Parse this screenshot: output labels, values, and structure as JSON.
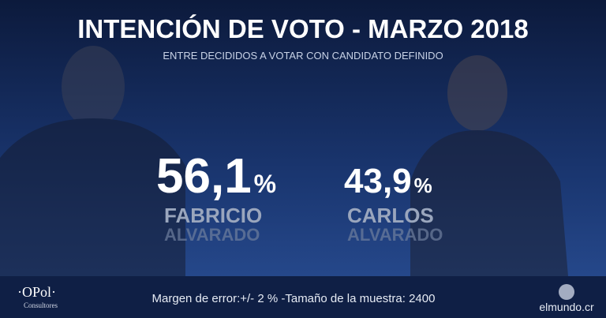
{
  "header": {
    "title": "INTENCIÓN DE VOTO - MARZO 2018",
    "subtitle": "ENTRE DECIDIDOS A VOTAR CON CANDIDATO DEFINIDO"
  },
  "candidates": [
    {
      "value": "56,1",
      "unit": "%",
      "first_name": "FABRICIO",
      "last_name": "ALVARADO"
    },
    {
      "value": "43,9",
      "unit": "%",
      "first_name": "CARLOS",
      "last_name": "ALVARADO"
    }
  ],
  "footer": {
    "logo": "·OPol·",
    "logo_sub": "Consultores",
    "note": "Margen de error:+/- 2 % -Tamaño de la muestra: 2400",
    "source": "elmundo.cr"
  }
}
